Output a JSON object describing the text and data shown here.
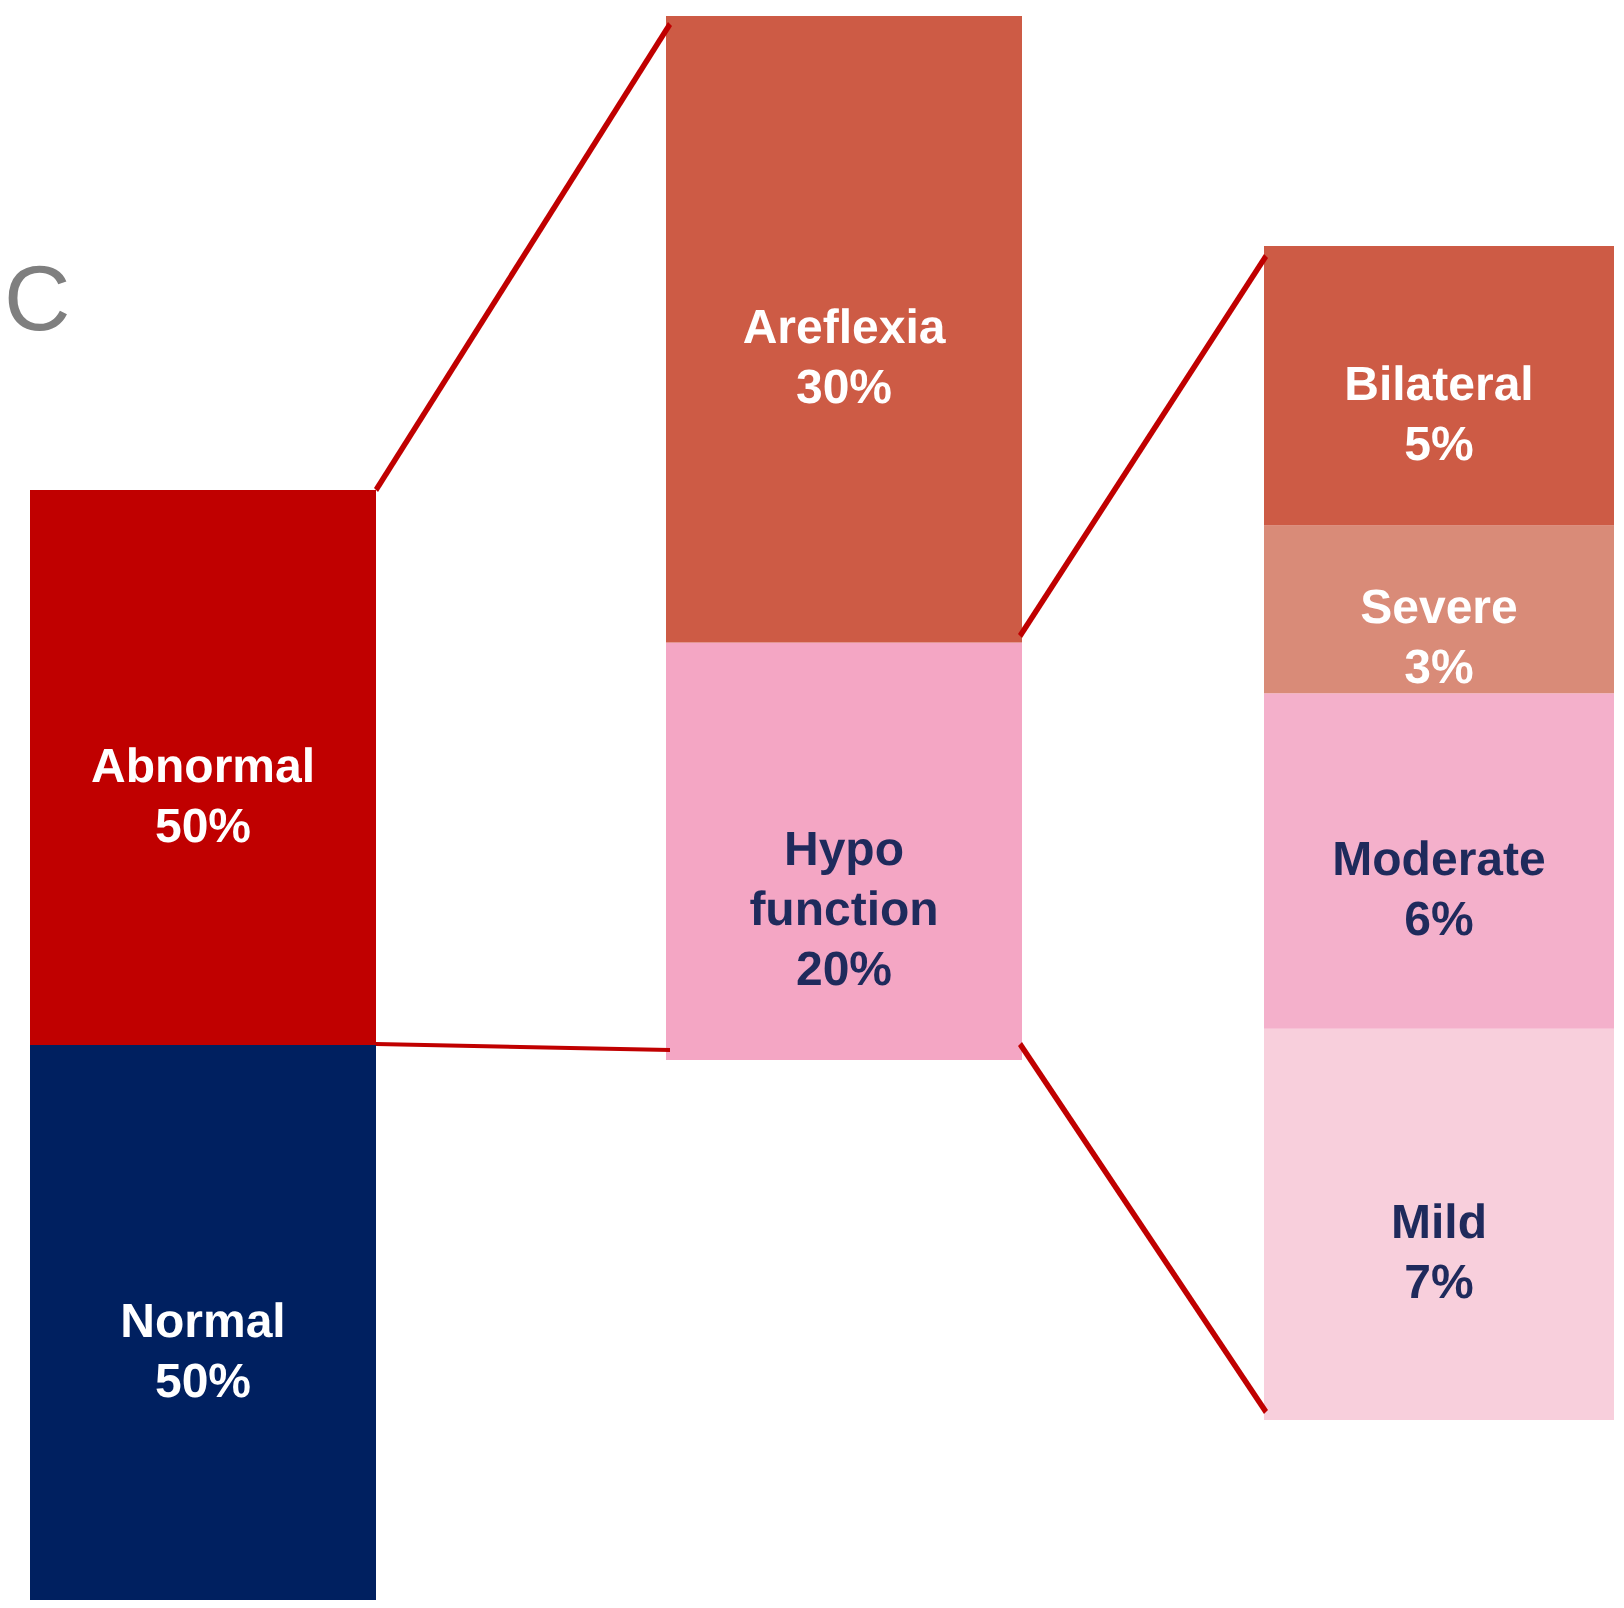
{
  "chart_data": [
    {
      "type": "bar",
      "stacked": true,
      "categories": [
        null
      ],
      "ylim": [
        0,
        100
      ],
      "tick_labels": false,
      "annotations": [
        "C"
      ],
      "series": [
        {
          "name": "Normal",
          "color": "#002060",
          "values": [
            50
          ],
          "value_labels": [
            "50%"
          ]
        },
        {
          "name": "Abnormal",
          "color": "#c00000",
          "values": [
            50
          ],
          "value_labels": [
            "50%"
          ]
        }
      ]
    },
    {
      "type": "bar",
      "stacked": true,
      "categories": [
        null
      ],
      "ylim": [
        0,
        50
      ],
      "tick_labels": false,
      "series": [
        {
          "name": "Hypo function",
          "color": "#f4a6c4",
          "values": [
            20
          ],
          "value_labels": [
            "20%"
          ]
        },
        {
          "name": "Areflexia",
          "color": "#cd5b45",
          "values": [
            30
          ],
          "value_labels": [
            "30%"
          ]
        }
      ]
    },
    {
      "type": "bar",
      "stacked": true,
      "categories": [
        null
      ],
      "ylim": [
        0,
        21
      ],
      "tick_labels": false,
      "series": [
        {
          "name": "Mild",
          "color": "#f8cfdc",
          "values": [
            7
          ],
          "value_labels": [
            "7%"
          ]
        },
        {
          "name": "Moderate",
          "color": "#f4b0cb",
          "values": [
            6
          ],
          "value_labels": [
            "6%"
          ]
        },
        {
          "name": "Severe",
          "color": "#d98b78",
          "values": [
            3
          ],
          "value_labels": [
            "3%"
          ]
        },
        {
          "name": "Bilateral",
          "color": "#cd5b45",
          "values": [
            5
          ],
          "value_labels": [
            "5%"
          ]
        }
      ]
    }
  ]
}
